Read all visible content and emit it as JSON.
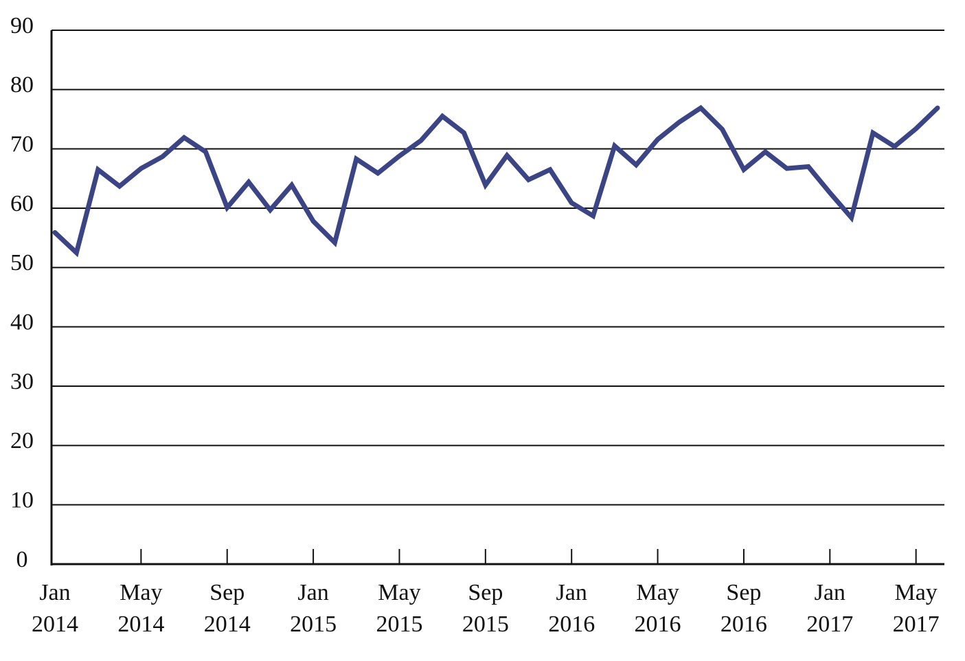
{
  "chart_data": {
    "type": "line",
    "categories": [
      "Jan 2014",
      null,
      null,
      null,
      "May 2014",
      null,
      null,
      null,
      "Sep 2014",
      null,
      null,
      null,
      "Jan 2015",
      null,
      null,
      null,
      "May 2015",
      null,
      null,
      null,
      "Sep 2015",
      null,
      null,
      null,
      "Jan 2016",
      null,
      null,
      null,
      "May 2016",
      null,
      null,
      null,
      "Sep 2016",
      null,
      null,
      null,
      "Jan 2017",
      null,
      null,
      null,
      "May 2017",
      null
    ],
    "series": [
      {
        "name": null,
        "color": "#3b4586",
        "values": [
          55.9,
          52.5,
          66.5,
          63.7,
          66.7,
          68.7,
          71.9,
          69.5,
          60.1,
          64.4,
          59.7,
          63.9,
          57.8,
          54.2,
          68.3,
          65.9,
          68.8,
          71.4,
          75.5,
          72.7,
          63.9,
          68.9,
          64.8,
          66.5,
          60.9,
          58.7,
          70.5,
          67.3,
          71.6,
          74.5,
          76.9,
          73.3,
          66.5,
          69.5,
          66.7,
          67.0,
          62.6,
          58.4,
          72.7,
          70.4,
          73.4,
          76.9
        ]
      }
    ],
    "ylim": [
      0,
      90
    ],
    "yticks": [
      0,
      10,
      20,
      30,
      40,
      50,
      60,
      70,
      80,
      90
    ],
    "grid": true
  }
}
